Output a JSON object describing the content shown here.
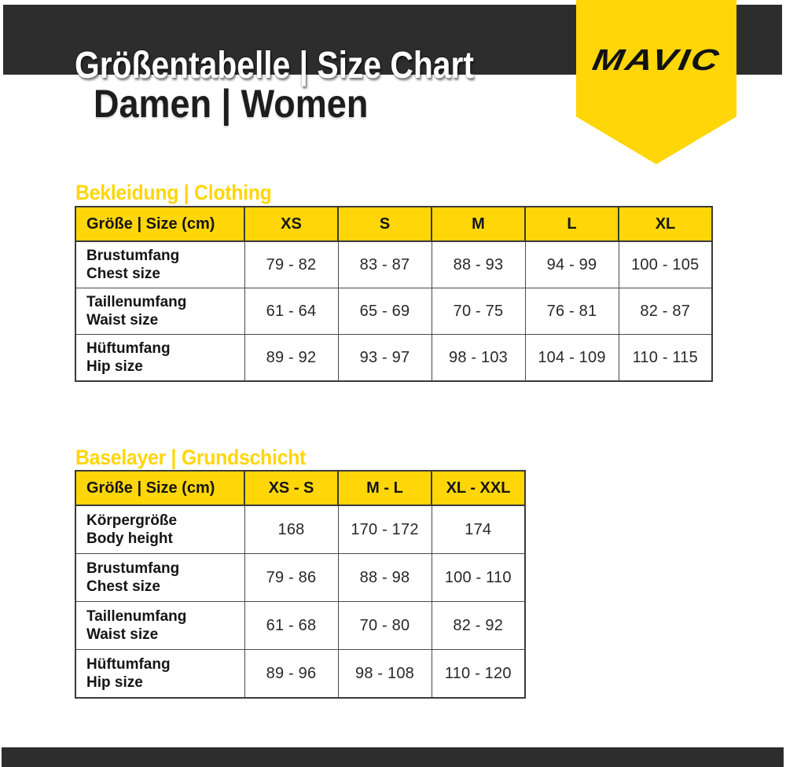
{
  "page": {
    "title": "Größentabelle | Size Chart",
    "subtitle": "Damen | Women",
    "brand_logo": "MAVIC"
  },
  "colors": {
    "brand_yellow": "#FFD608",
    "band_dark": "#2D2D2D"
  },
  "clothing_table": {
    "heading": "Bekleidung | Clothing",
    "corner_label": "Größe | Size (cm)",
    "columns": [
      "XS",
      "S",
      "M",
      "L",
      "XL"
    ],
    "rows": [
      {
        "label_de": "Brustumfang",
        "label_en": "Chest size",
        "values": [
          "79 - 82",
          "83 - 87",
          "88 - 93",
          "94 - 99",
          "100 - 105"
        ]
      },
      {
        "label_de": "Taillenumfang",
        "label_en": "Waist size",
        "values": [
          "61 - 64",
          "65 - 69",
          "70 - 75",
          "76 - 81",
          "82 - 87"
        ]
      },
      {
        "label_de": "Hüftumfang",
        "label_en": "Hip size",
        "values": [
          "89 - 92",
          "93 - 97",
          "98 - 103",
          "104 - 109",
          "110 - 115"
        ]
      }
    ]
  },
  "baselayer_table": {
    "heading": "Baselayer | Grundschicht",
    "corner_label": "Größe | Size (cm)",
    "columns": [
      "XS - S",
      "M - L",
      "XL - XXL"
    ],
    "rows": [
      {
        "label_de": "Körpergröße",
        "label_en": "Body height",
        "values": [
          "168",
          "170 - 172",
          "174"
        ]
      },
      {
        "label_de": "Brustumfang",
        "label_en": "Chest size",
        "values": [
          "79 - 86",
          "88 - 98",
          "100 - 110"
        ]
      },
      {
        "label_de": "Taillenumfang",
        "label_en": "Waist size",
        "values": [
          "61 - 68",
          "70 - 80",
          "82 - 92"
        ]
      },
      {
        "label_de": "Hüftumfang",
        "label_en": "Hip size",
        "values": [
          "89 - 96",
          "98 - 108",
          "110 - 120"
        ]
      }
    ]
  }
}
